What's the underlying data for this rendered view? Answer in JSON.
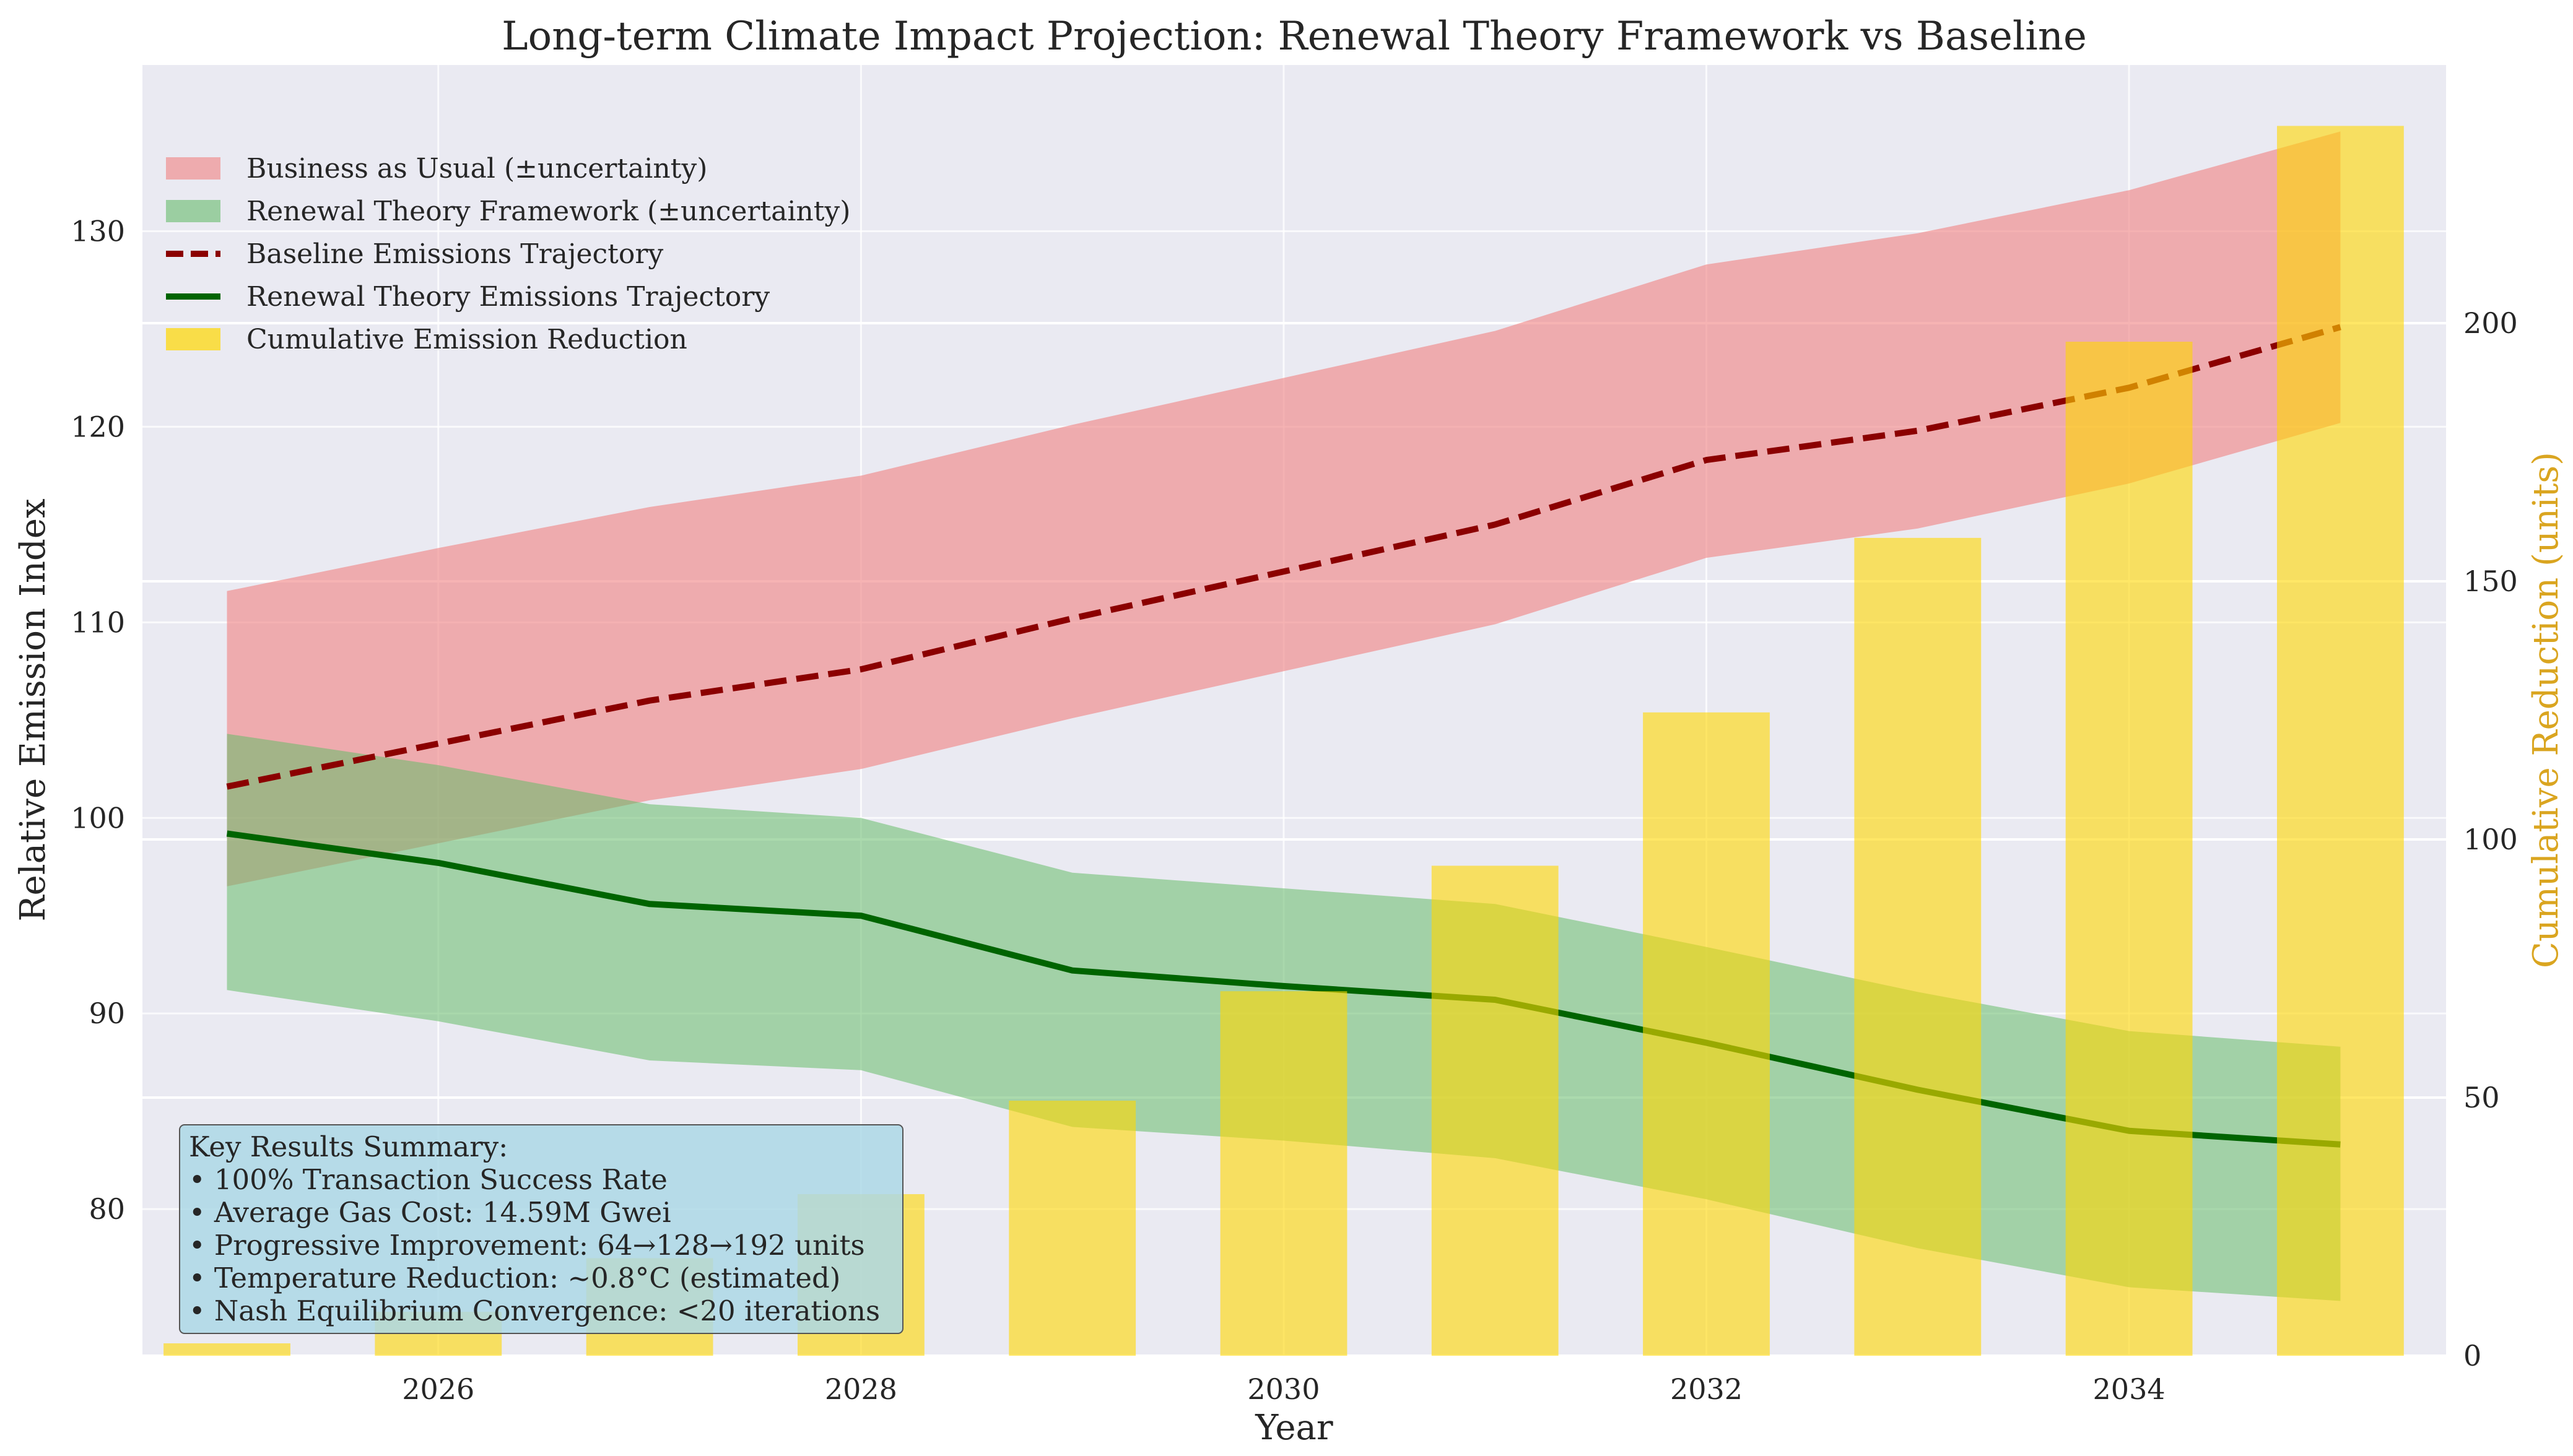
{
  "chart_data": {
    "type": "line",
    "title": "Long-term Climate Impact Projection: Renewal Theory Framework vs Baseline",
    "xlabel": "Year",
    "ylabel": "Relative Emission Index",
    "y2label": "Cumulative Reduction (units)",
    "xlim": [
      2024.6,
      2035.5
    ],
    "ylim": [
      72.5,
      138.5
    ],
    "y2lim": [
      0,
      250
    ],
    "x": [
      2025,
      2026,
      2027,
      2028,
      2029,
      2030,
      2031,
      2032,
      2033,
      2034,
      2035
    ],
    "x_ticks": [
      2026,
      2028,
      2030,
      2032,
      2034
    ],
    "y_ticks": [
      80,
      90,
      100,
      110,
      120,
      130
    ],
    "y2_ticks": [
      0,
      50,
      100,
      150,
      200
    ],
    "grid": true,
    "legend_position": "upper-left",
    "series": [
      {
        "name": "Business as Usual (±uncertainty)",
        "kind": "band",
        "color": "#f08080",
        "lower": [
          96.5,
          98.7,
          100.9,
          102.5,
          105.1,
          107.5,
          109.9,
          113.3,
          114.8,
          117.1,
          120.2
        ],
        "upper": [
          111.6,
          113.8,
          115.9,
          117.5,
          120.1,
          122.5,
          124.9,
          128.3,
          129.9,
          132.1,
          135.1
        ]
      },
      {
        "name": "Renewal Theory Framework (±uncertainty)",
        "kind": "band",
        "color": "#66bb6a",
        "lower": [
          91.2,
          89.6,
          87.6,
          87.1,
          84.2,
          83.5,
          82.6,
          80.5,
          78.0,
          76.0,
          75.3
        ],
        "upper": [
          104.3,
          102.7,
          100.7,
          100.0,
          97.2,
          96.4,
          95.6,
          93.4,
          91.1,
          89.1,
          88.3
        ]
      },
      {
        "name": "Baseline Emissions Trajectory",
        "kind": "line",
        "style": "dashed",
        "color": "#8b0000",
        "values": [
          101.6,
          103.8,
          106.0,
          107.6,
          110.2,
          112.6,
          115.0,
          118.3,
          119.8,
          122.0,
          125.1
        ]
      },
      {
        "name": "Renewal Theory Emissions Trajectory",
        "kind": "line",
        "style": "solid",
        "color": "#006400",
        "values": [
          99.2,
          97.7,
          95.6,
          95.0,
          92.2,
          91.4,
          90.7,
          88.5,
          86.1,
          84.0,
          83.3
        ]
      },
      {
        "name": "Cumulative Emission Reduction",
        "kind": "bar",
        "axis": "right",
        "color": "#ffd700",
        "values": [
          2.4,
          8.5,
          18.9,
          31.3,
          49.4,
          70.6,
          94.9,
          124.6,
          158.4,
          196.4,
          238.2
        ]
      }
    ],
    "annotation": {
      "lines": [
        "Key Results Summary:",
        "• 100% Transaction Success Rate",
        "• Average Gas Cost: 14.59M Gwei",
        "• Progressive Improvement: 64→128→192 units",
        "• Temperature Reduction: ~0.8°C (estimated)",
        "• Nash Equilibrium Convergence: <20 iterations"
      ]
    },
    "colors": {
      "plot_background": "#eaeaf2",
      "grid": "#ffffff",
      "right_axis_label": "#daa520",
      "annotation_background": "#add8e6"
    }
  }
}
